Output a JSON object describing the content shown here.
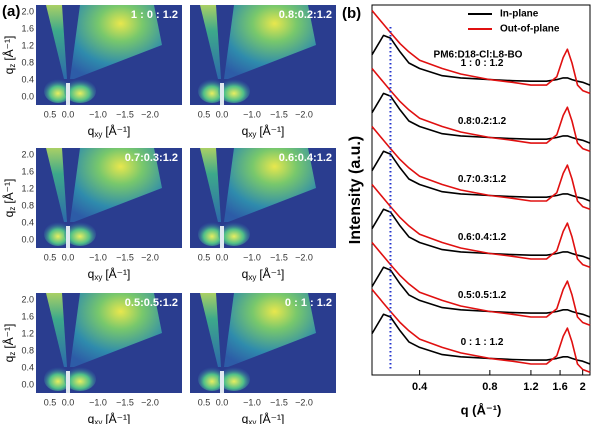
{
  "panel_a": {
    "label": "(a)",
    "images": [
      {
        "label": "1 : 0 : 1.2"
      },
      {
        "label": "0.8:0.2:1.2"
      },
      {
        "label": "0.7:0.3:1.2"
      },
      {
        "label": "0.6:0.4:1.2"
      },
      {
        "label": "0.5:0.5:1.2"
      },
      {
        "label": "0 : 1 : 1.2"
      }
    ],
    "xticks": [
      "0.5",
      "0.0",
      "−1.0",
      "−1.5",
      "−2.0"
    ],
    "yticks": [
      "0.0",
      "0.4",
      "0.8",
      "1.2",
      "1.6",
      "2.0"
    ],
    "x_label": {
      "main": "q",
      "sub": "xy",
      "unit": "[Å⁻¹]"
    },
    "y_label": {
      "main": "q",
      "sub": "z",
      "unit": "[Å⁻¹]"
    }
  },
  "chart_data": {
    "type": "line",
    "label": "(b)",
    "annotation": "PM6:D18-Cl:L8-BO",
    "x_label": "q (Å⁻¹)",
    "y_label": "Intensity (a.u.)",
    "xscale": "log",
    "xlim": [
      0.25,
      2.15
    ],
    "xticks": [
      0.4,
      0.8,
      1.2,
      1.6,
      2
    ],
    "ylim": [
      0,
      6.7
    ],
    "reference_line": {
      "x": 0.3,
      "color": "#2233cc"
    },
    "x": [
      0.25,
      0.28,
      0.3,
      0.33,
      0.36,
      0.4,
      0.5,
      0.6,
      0.8,
      1.0,
      1.2,
      1.4,
      1.55,
      1.65,
      1.72,
      1.8,
      1.9,
      2.0,
      2.15
    ],
    "groups": [
      {
        "label": "1 : 0 : 1.2",
        "series": [
          {
            "name": "In-plane",
            "color": "#000000",
            "values": [
              5.8,
              6.15,
              6.1,
              5.85,
              5.65,
              5.55,
              5.42,
              5.38,
              5.35,
              5.33,
              5.32,
              5.32,
              5.35,
              5.38,
              5.38,
              5.35,
              5.32,
              5.3,
              5.25
            ]
          },
          {
            "name": "Out-of-plane",
            "color": "#e01010",
            "values": [
              6.6,
              6.35,
              6.2,
              6.0,
              5.85,
              5.7,
              5.55,
              5.45,
              5.35,
              5.3,
              5.25,
              5.25,
              5.4,
              5.75,
              5.9,
              5.65,
              5.25,
              5.15,
              5.1
            ]
          }
        ]
      },
      {
        "label": "0.8:0.2:1.2",
        "series": [
          {
            "name": "In-plane",
            "color": "#000000",
            "values": [
              4.75,
              5.1,
              5.05,
              4.8,
              4.6,
              4.5,
              4.37,
              4.33,
              4.3,
              4.28,
              4.27,
              4.27,
              4.3,
              4.33,
              4.33,
              4.3,
              4.27,
              4.25,
              4.2
            ]
          },
          {
            "name": "Out-of-plane",
            "color": "#e01010",
            "values": [
              5.55,
              5.3,
              5.15,
              4.95,
              4.8,
              4.65,
              4.5,
              4.4,
              4.3,
              4.25,
              4.2,
              4.2,
              4.35,
              4.7,
              4.85,
              4.6,
              4.2,
              4.1,
              4.05
            ]
          }
        ]
      },
      {
        "label": "0.7:0.3:1.2",
        "series": [
          {
            "name": "In-plane",
            "color": "#000000",
            "values": [
              3.7,
              4.05,
              4.0,
              3.75,
              3.55,
              3.45,
              3.32,
              3.28,
              3.25,
              3.23,
              3.22,
              3.22,
              3.25,
              3.28,
              3.28,
              3.25,
              3.22,
              3.2,
              3.15
            ]
          },
          {
            "name": "Out-of-plane",
            "color": "#e01010",
            "values": [
              4.5,
              4.25,
              4.1,
              3.9,
              3.75,
              3.6,
              3.45,
              3.35,
              3.25,
              3.2,
              3.15,
              3.15,
              3.3,
              3.65,
              3.8,
              3.55,
              3.15,
              3.05,
              3.0
            ]
          }
        ]
      },
      {
        "label": "0.6:0.4:1.2",
        "series": [
          {
            "name": "In-plane",
            "color": "#000000",
            "values": [
              2.65,
              3.0,
              2.95,
              2.7,
              2.5,
              2.4,
              2.27,
              2.23,
              2.2,
              2.18,
              2.17,
              2.17,
              2.2,
              2.23,
              2.23,
              2.2,
              2.17,
              2.15,
              2.1
            ]
          },
          {
            "name": "Out-of-plane",
            "color": "#e01010",
            "values": [
              3.45,
              3.2,
              3.05,
              2.85,
              2.7,
              2.55,
              2.4,
              2.3,
              2.2,
              2.15,
              2.1,
              2.1,
              2.25,
              2.6,
              2.75,
              2.5,
              2.1,
              2.0,
              1.95
            ]
          }
        ]
      },
      {
        "label": "0.5:0.5:1.2",
        "series": [
          {
            "name": "In-plane",
            "color": "#000000",
            "values": [
              1.6,
              1.95,
              1.9,
              1.65,
              1.45,
              1.35,
              1.22,
              1.18,
              1.15,
              1.13,
              1.12,
              1.12,
              1.15,
              1.18,
              1.18,
              1.15,
              1.12,
              1.1,
              1.05
            ]
          },
          {
            "name": "Out-of-plane",
            "color": "#e01010",
            "values": [
              2.4,
              2.15,
              2.0,
              1.8,
              1.65,
              1.5,
              1.35,
              1.25,
              1.15,
              1.1,
              1.05,
              1.05,
              1.2,
              1.55,
              1.7,
              1.45,
              1.05,
              0.95,
              0.9
            ]
          }
        ]
      },
      {
        "label": "0 : 1 : 1.2",
        "series": [
          {
            "name": "In-plane",
            "color": "#000000",
            "values": [
              0.75,
              1.1,
              1.05,
              0.8,
              0.6,
              0.5,
              0.37,
              0.33,
              0.3,
              0.28,
              0.27,
              0.27,
              0.3,
              0.33,
              0.33,
              0.3,
              0.27,
              0.25,
              0.2
            ]
          },
          {
            "name": "Out-of-plane",
            "color": "#e01010",
            "values": [
              1.55,
              1.3,
              1.15,
              0.95,
              0.8,
              0.65,
              0.5,
              0.4,
              0.3,
              0.25,
              0.2,
              0.2,
              0.35,
              0.7,
              0.85,
              0.6,
              0.2,
              0.1,
              0.05
            ]
          }
        ]
      }
    ]
  }
}
